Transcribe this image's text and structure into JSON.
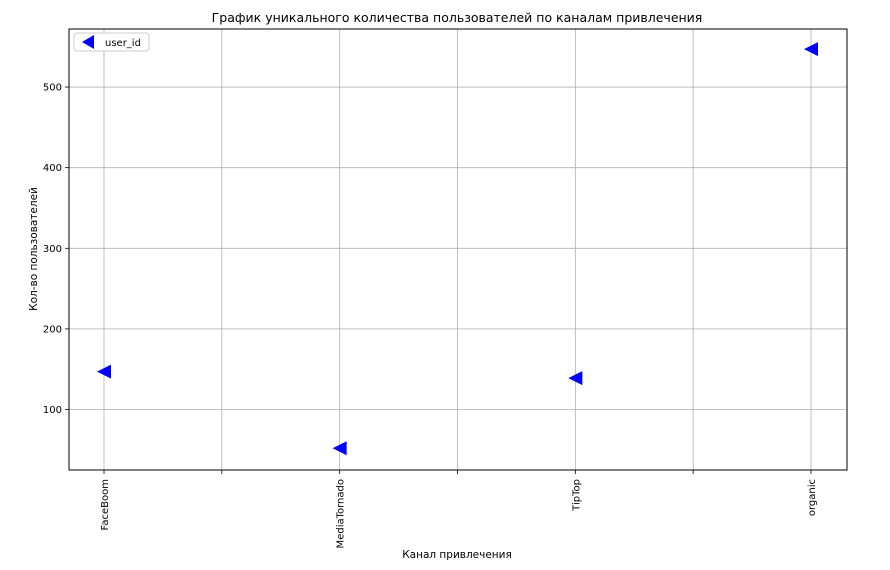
{
  "chart_data": {
    "type": "scatter",
    "title": "График уникального количества пользователей по каналам привлечения",
    "xlabel": "Канал привлечения",
    "ylabel": "Кол-во пользователей",
    "categories": [
      "FaceBoom",
      "MediaTornado",
      "TipTop",
      "organic"
    ],
    "series": [
      {
        "name": "user_id",
        "values": [
          147,
          52,
          139,
          547
        ],
        "marker": "triangle-left",
        "color": "#0000ff"
      }
    ],
    "yticks": [
      100,
      200,
      300,
      400,
      500
    ],
    "ylim": [
      25,
      572
    ],
    "grid": true,
    "legend": "top-left"
  }
}
